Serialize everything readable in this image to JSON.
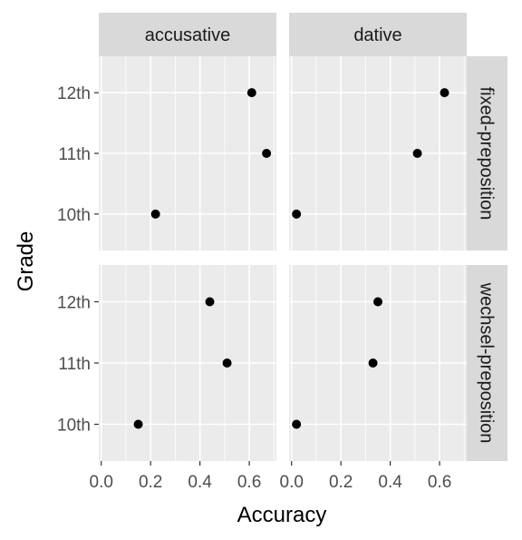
{
  "chart_data": {
    "type": "scatter",
    "xlabel": "Accuracy",
    "ylabel": "Grade",
    "xlim": [
      -0.01,
      0.71
    ],
    "x_ticks": [
      0.0,
      0.2,
      0.4,
      0.6
    ],
    "x_tick_labels": [
      "0.0",
      "0.2",
      "0.4",
      "0.6"
    ],
    "categories": [
      "10th",
      "11th",
      "12th"
    ],
    "facet_columns": [
      "accusative",
      "dative"
    ],
    "facet_rows": [
      "fixed-preposition",
      "wechsel-preposition"
    ],
    "grid": true,
    "panels": [
      {
        "row": "fixed-preposition",
        "column": "accusative",
        "points": [
          {
            "grade": "12th",
            "x": 0.61
          },
          {
            "grade": "11th",
            "x": 0.67
          },
          {
            "grade": "10th",
            "x": 0.22
          }
        ]
      },
      {
        "row": "fixed-preposition",
        "column": "dative",
        "points": [
          {
            "grade": "12th",
            "x": 0.62
          },
          {
            "grade": "11th",
            "x": 0.51
          },
          {
            "grade": "10th",
            "x": 0.02
          }
        ]
      },
      {
        "row": "wechsel-preposition",
        "column": "accusative",
        "points": [
          {
            "grade": "12th",
            "x": 0.44
          },
          {
            "grade": "11th",
            "x": 0.51
          },
          {
            "grade": "10th",
            "x": 0.15
          }
        ]
      },
      {
        "row": "wechsel-preposition",
        "column": "dative",
        "points": [
          {
            "grade": "12th",
            "x": 0.35
          },
          {
            "grade": "11th",
            "x": 0.33
          },
          {
            "grade": "10th",
            "x": 0.02
          }
        ]
      }
    ],
    "colors": {
      "panel_background": "#ebebeb",
      "strip_background": "#d9d9d9",
      "grid": "#ffffff",
      "point": "#000000",
      "tick": "#333333"
    }
  }
}
